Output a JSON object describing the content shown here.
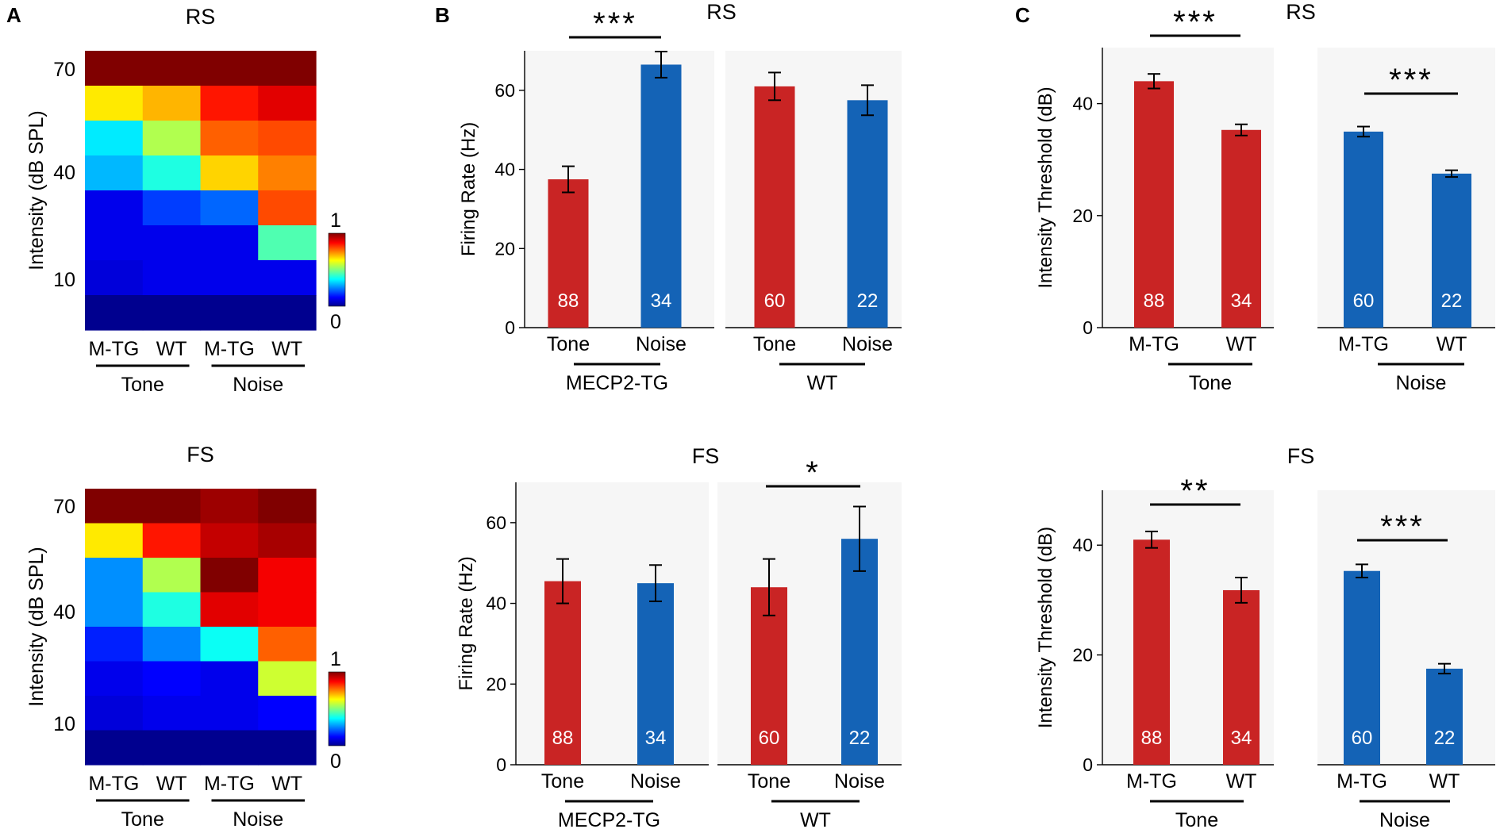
{
  "figure": {
    "panel_labels": [
      "A",
      "B",
      "C"
    ],
    "colors": {
      "red": "#c92424",
      "blue": "#1463b6",
      "bar_text": "#ffffff",
      "axis": "#000000",
      "panel_bg": "#f6f6f6"
    }
  },
  "chart_data": [
    {
      "id": "A-RS",
      "type": "heatmap",
      "title": "RS",
      "ylabel": "Intensity (dB SPL)",
      "yticks": [
        "70",
        "40",
        "10"
      ],
      "columns": [
        "M-TG",
        "WT",
        "M-TG",
        "WT"
      ],
      "groups": [
        "Tone",
        "Noise"
      ],
      "colorbar": {
        "min": "0",
        "max": "1"
      },
      "rows_top_to_bottom": [
        [
          1.0,
          1.0,
          1.0,
          1.0
        ],
        [
          0.65,
          0.7,
          0.85,
          0.9
        ],
        [
          0.35,
          0.55,
          0.78,
          0.8
        ],
        [
          0.3,
          0.4,
          0.67,
          0.75
        ],
        [
          0.1,
          0.18,
          0.22,
          0.8
        ],
        [
          0.1,
          0.1,
          0.1,
          0.45
        ],
        [
          0.08,
          0.1,
          0.1,
          0.1
        ],
        [
          0.0,
          0.0,
          0.0,
          0.0
        ]
      ]
    },
    {
      "id": "A-FS",
      "type": "heatmap",
      "title": "FS",
      "ylabel": "Intensity (dB SPL)",
      "yticks": [
        "70",
        "40",
        "10"
      ],
      "columns": [
        "M-TG",
        "WT",
        "M-TG",
        "WT"
      ],
      "groups": [
        "Tone",
        "Noise"
      ],
      "colorbar": {
        "min": "0",
        "max": "1"
      },
      "rows_top_to_bottom": [
        [
          1.0,
          1.0,
          0.97,
          1.0
        ],
        [
          0.65,
          0.85,
          0.93,
          0.96
        ],
        [
          0.26,
          0.55,
          1.0,
          0.88
        ],
        [
          0.26,
          0.4,
          0.9,
          0.88
        ],
        [
          0.15,
          0.25,
          0.38,
          0.78
        ],
        [
          0.1,
          0.12,
          0.1,
          0.58
        ],
        [
          0.08,
          0.1,
          0.1,
          0.12
        ],
        [
          0.0,
          0.0,
          0.0,
          0.0
        ]
      ]
    },
    {
      "id": "B-RS",
      "type": "bar",
      "title": "RS",
      "ylabel": "Firing Rate (Hz)",
      "ylim": [
        0,
        70
      ],
      "yticks": [
        0,
        20,
        40,
        60
      ],
      "groups": [
        {
          "name": "MECP2-TG",
          "categories": [
            "Tone",
            "Noise"
          ],
          "values": [
            37.5,
            66.5
          ],
          "errors": [
            3.3,
            3.3
          ],
          "n": [
            "88",
            "34"
          ],
          "colors": [
            "red",
            "blue"
          ]
        },
        {
          "name": "WT",
          "categories": [
            "Tone",
            "Noise"
          ],
          "values": [
            61.0,
            57.5
          ],
          "errors": [
            3.5,
            3.8
          ],
          "n": [
            "60",
            "22"
          ],
          "colors": [
            "red",
            "blue"
          ]
        }
      ],
      "significance": [
        {
          "group": 0,
          "label": "***"
        }
      ]
    },
    {
      "id": "B-FS",
      "type": "bar",
      "title": "FS",
      "ylabel": "Firing Rate (Hz)",
      "ylim": [
        0,
        70
      ],
      "yticks": [
        0,
        20,
        40,
        60
      ],
      "groups": [
        {
          "name": "MECP2-TG",
          "categories": [
            "Tone",
            "Noise"
          ],
          "values": [
            45.5,
            45.0
          ],
          "errors": [
            5.5,
            4.5
          ],
          "n": [
            "88",
            "34"
          ],
          "colors": [
            "red",
            "blue"
          ]
        },
        {
          "name": "WT",
          "categories": [
            "Tone",
            "Noise"
          ],
          "values": [
            44.0,
            56.0
          ],
          "errors": [
            7.0,
            8.0
          ],
          "n": [
            "60",
            "22"
          ],
          "colors": [
            "red",
            "blue"
          ]
        }
      ],
      "significance": [
        {
          "group": 1,
          "label": "*"
        }
      ]
    },
    {
      "id": "C-RS",
      "type": "bar",
      "title": "RS",
      "ylabel": "Intensity Threshold (dB)",
      "ylim": [
        0,
        50
      ],
      "yticks": [
        0,
        20,
        40
      ],
      "groups": [
        {
          "name": "Tone",
          "categories": [
            "M-TG",
            "WT"
          ],
          "values": [
            44.0,
            35.3
          ],
          "errors": [
            1.3,
            1.0
          ],
          "n": [
            "88",
            "34"
          ],
          "colors": [
            "red",
            "red"
          ]
        },
        {
          "name": "Noise",
          "categories": [
            "M-TG",
            "WT"
          ],
          "values": [
            35.0,
            27.5
          ],
          "errors": [
            0.9,
            0.6
          ],
          "n": [
            "60",
            "22"
          ],
          "colors": [
            "blue",
            "blue"
          ]
        }
      ],
      "significance": [
        {
          "group": 0,
          "label": "***"
        },
        {
          "group": 1,
          "label": "***"
        }
      ]
    },
    {
      "id": "C-FS",
      "type": "bar",
      "title": "FS",
      "ylabel": "Intensity Threshold (dB)",
      "ylim": [
        0,
        50
      ],
      "yticks": [
        0,
        20,
        40
      ],
      "groups": [
        {
          "name": "Tone",
          "categories": [
            "M-TG",
            "WT"
          ],
          "values": [
            41.0,
            31.8
          ],
          "errors": [
            1.5,
            2.3
          ],
          "n": [
            "88",
            "34"
          ],
          "colors": [
            "red",
            "red"
          ]
        },
        {
          "name": "Noise",
          "categories": [
            "M-TG",
            "WT"
          ],
          "values": [
            35.3,
            17.5
          ],
          "errors": [
            1.2,
            0.9
          ],
          "n": [
            "60",
            "22"
          ],
          "colors": [
            "blue",
            "blue"
          ]
        }
      ],
      "significance": [
        {
          "group": 0,
          "label": "**"
        },
        {
          "group": 1,
          "label": "***"
        }
      ]
    }
  ]
}
